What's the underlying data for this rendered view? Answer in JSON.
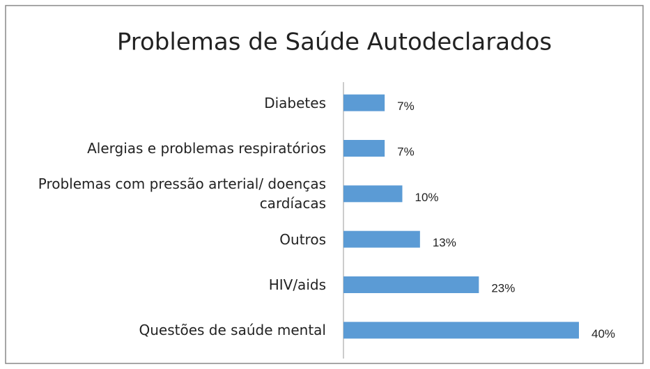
{
  "chart_data": {
    "type": "bar",
    "orientation": "horizontal",
    "title": "Problemas de Saúde Autodeclarados",
    "categories": [
      "Diabetes",
      "Alergias e problemas respiratórios",
      "Problemas com pressão arterial/ doenças cardíacas",
      "Outros",
      "HIV/aids",
      "Questões de saúde mental"
    ],
    "values": [
      7,
      7,
      10,
      13,
      23,
      40
    ],
    "value_labels": [
      "7%",
      "7%",
      "10%",
      "13%",
      "23%",
      "40%"
    ],
    "color": "#5b9bd5"
  }
}
